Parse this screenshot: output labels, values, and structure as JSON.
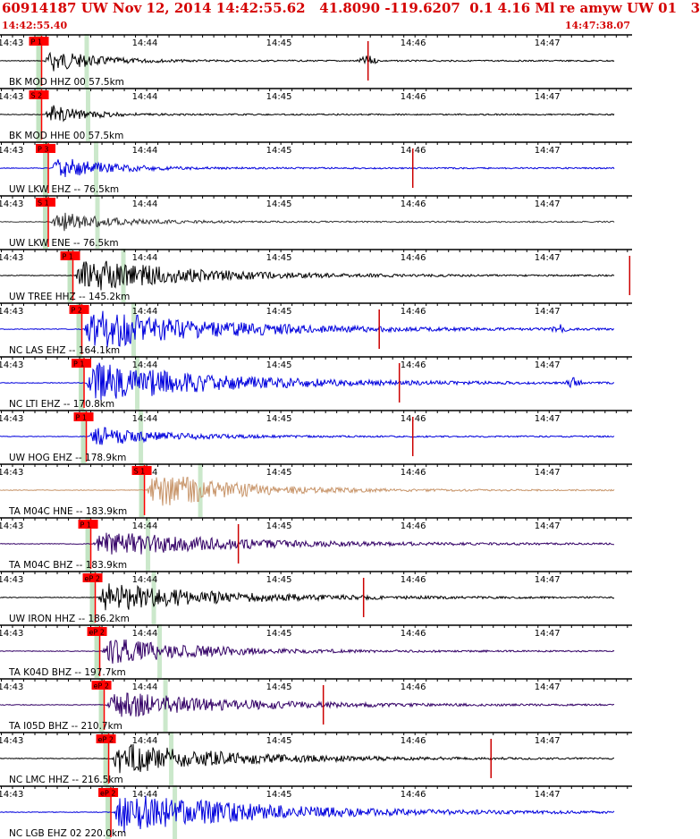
{
  "header": {
    "title": "60914187 UW Nov 12, 2014 14:42:55.62   41.8090 -119.6207  0.1 4.16 Ml re amyw UW 01   3",
    "start_time": "14:42:55.40",
    "end_time": "14:47:38.07"
  },
  "chart_data": {
    "type": "line",
    "title": "",
    "xlabel": "",
    "ylabel": "",
    "x_start_seconds_after_1442": 55.4,
    "x_end_seconds_after_1442": 338.07,
    "minute_ticks": [
      "14:43",
      "14:44",
      "14:45",
      "14:46",
      "14:47"
    ],
    "series": [
      {
        "name": "BK MOD HHZ 00 57.5km",
        "color": "#000000",
        "pick": "P 1",
        "pick_time_s": 74,
        "onset_s": 75,
        "amp": 0.55,
        "decay": 20,
        "secondary_at_s": 220,
        "spike_s": 220
      },
      {
        "name": "BK MOD HHE 00 57.5km",
        "color": "#000000",
        "pick": "S 2",
        "pick_time_s": 74,
        "onset_s": 75,
        "amp": 0.5,
        "decay": 15,
        "secondary_at_s": null,
        "spike_s": null
      },
      {
        "name": "UW LKW EHZ -- 76.5km",
        "color": "#0000dd",
        "pick": "P 3",
        "pick_time_s": 77,
        "onset_s": 78,
        "amp": 0.55,
        "decay": 22,
        "secondary_at_s": null,
        "spike_s": 240
      },
      {
        "name": "UW LKW ENE -- 76.5km",
        "color": "#333333",
        "pick": "S 1",
        "pick_time_s": 77,
        "onset_s": 78,
        "amp": 0.45,
        "decay": 25,
        "secondary_at_s": null,
        "spike_s": null
      },
      {
        "name": "UW TREE HHZ -- 145.2km",
        "color": "#000000",
        "pick": "P 1",
        "pick_time_s": 88,
        "onset_s": 89,
        "amp": 0.8,
        "decay": 45,
        "secondary_at_s": null,
        "spike_s": 337
      },
      {
        "name": "NC LAS EHZ -- 164.1km",
        "color": "#0000dd",
        "pick": "P 2",
        "pick_time_s": 92,
        "onset_s": 93,
        "amp": 0.9,
        "decay": 55,
        "secondary_at_s": 306,
        "spike_s": 225
      },
      {
        "name": "NC LTI EHZ -- 170.8km",
        "color": "#0000dd",
        "pick": "P 1",
        "pick_time_s": 93,
        "onset_s": 94,
        "amp": 0.9,
        "decay": 55,
        "secondary_at_s": 312,
        "spike_s": 234
      },
      {
        "name": "UW HOG EHZ -- 178.9km",
        "color": "#0000dd",
        "pick": "P 1",
        "pick_time_s": 94,
        "onset_s": 95,
        "amp": 0.45,
        "decay": 30,
        "secondary_at_s": null,
        "spike_s": 240
      },
      {
        "name": "TA M04C HNE -- 183.9km",
        "color": "#c8956a",
        "pick": "S 1",
        "pick_time_s": 120,
        "onset_s": 121,
        "amp": 0.85,
        "decay": 35,
        "secondary_at_s": null,
        "spike_s": null
      },
      {
        "name": "TA M04C BHZ -- 183.9km",
        "color": "#330066",
        "pick": "P 1",
        "pick_time_s": 96,
        "onset_s": 97,
        "amp": 0.6,
        "decay": 55,
        "secondary_at_s": null,
        "spike_s": 162
      },
      {
        "name": "UW IRON HHZ -- 186.2km",
        "color": "#000000",
        "pick": "eP 2",
        "pick_time_s": 98,
        "onset_s": 99,
        "amp": 0.65,
        "decay": 50,
        "secondary_at_s": null,
        "spike_s": 218
      },
      {
        "name": "TA K04D BHZ -- 197.7km",
        "color": "#330066",
        "pick": "eP 2",
        "pick_time_s": 100,
        "onset_s": 101,
        "amp": 0.6,
        "decay": 40,
        "secondary_at_s": null,
        "spike_s": null
      },
      {
        "name": "TA I05D BHZ -- 210.7km",
        "color": "#330066",
        "pick": "eP 2",
        "pick_time_s": 102,
        "onset_s": 103,
        "amp": 0.6,
        "decay": 50,
        "secondary_at_s": null,
        "spike_s": 200
      },
      {
        "name": "NC LMC HHZ -- 216.5km",
        "color": "#000000",
        "pick": "eP 2",
        "pick_time_s": 104,
        "onset_s": 105,
        "amp": 0.7,
        "decay": 50,
        "secondary_at_s": null,
        "spike_s": 275
      },
      {
        "name": "NC LGB EHZ 02 220.0km",
        "color": "#0000dd",
        "pick": "eP 2",
        "pick_time_s": 105,
        "onset_s": 106,
        "amp": 0.9,
        "decay": 60,
        "secondary_at_s": null,
        "spike_s": null
      }
    ],
    "colors": {
      "pick": "#ff0000",
      "window": "#a8d8a8",
      "grid": "#000000",
      "label_text": "#000000",
      "title": "#d40000"
    }
  }
}
